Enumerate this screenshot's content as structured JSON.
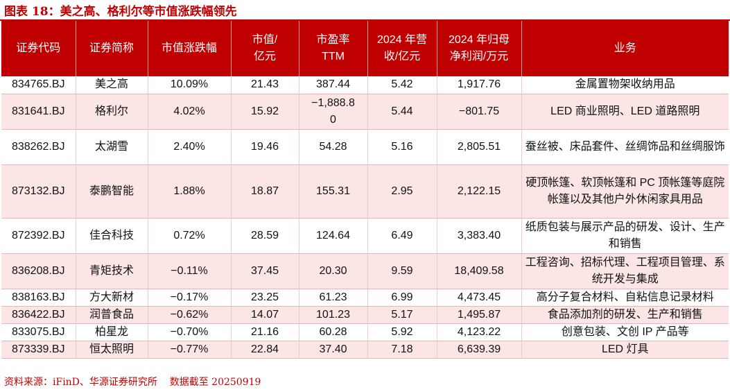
{
  "title": "图表 18：美之高、格利尔等市值涨跌幅领先",
  "headers": {
    "code": "证券代码",
    "name": "证券简称",
    "change": "市值涨跌幅",
    "mcap": "市值/亿元",
    "pe": "市盈率 TTM",
    "rev": "2024 年营收/亿元",
    "profit": "2024 年归母净利润/万元",
    "biz": "业务"
  },
  "rows": [
    {
      "code": "834765.BJ",
      "name": "美之高",
      "change": "10.09%",
      "mcap": "21.43",
      "pe": "387.44",
      "rev": "5.42",
      "profit": "1,917.76",
      "biz": "金属置物架收纳用品"
    },
    {
      "code": "831641.BJ",
      "name": "格利尔",
      "change": "4.02%",
      "mcap": "15.92",
      "pe": "−1,888.80",
      "rev": "5.44",
      "profit": "−801.75",
      "biz": "LED 商业照明、LED 道路照明"
    },
    {
      "code": "838262.BJ",
      "name": "太湖雪",
      "change": "2.40%",
      "mcap": "19.46",
      "pe": "54.28",
      "rev": "5.16",
      "profit": "2,805.51",
      "biz": "蚕丝被、床品套件、丝绸饰品和丝绸服饰"
    },
    {
      "code": "873132.BJ",
      "name": "泰鹏智能",
      "change": "1.88%",
      "mcap": "18.87",
      "pe": "155.31",
      "rev": "2.95",
      "profit": "2,122.15",
      "biz": "硬顶帐篷、软顶帐篷和 PC 顶帐篷等庭院帐篷以及其他户外休闲家具用品"
    },
    {
      "code": "872392.BJ",
      "name": "佳合科技",
      "change": "0.72%",
      "mcap": "28.59",
      "pe": "124.64",
      "rev": "6.49",
      "profit": "3,383.40",
      "biz": "纸质包装与展示产品的研发、设计、生产和销售"
    },
    {
      "code": "836208.BJ",
      "name": "青矩技术",
      "change": "−0.11%",
      "mcap": "37.45",
      "pe": "20.30",
      "rev": "9.59",
      "profit": "18,409.58",
      "biz": "工程咨询、招标代理、工程项目管理、系统开发与集成"
    },
    {
      "code": "838163.BJ",
      "name": "方大新材",
      "change": "−0.17%",
      "mcap": "23.25",
      "pe": "61.23",
      "rev": "6.99",
      "profit": "4,473.45",
      "biz": "高分子复合材料、自粘信息记录材料"
    },
    {
      "code": "836422.BJ",
      "name": "润普食品",
      "change": "−0.62%",
      "mcap": "14.07",
      "pe": "101.23",
      "rev": "5.17",
      "profit": "1,495.87",
      "biz": "食品添加剂的研发、生产和销售"
    },
    {
      "code": "833075.BJ",
      "name": "柏星龙",
      "change": "−0.70%",
      "mcap": "21.16",
      "pe": "60.28",
      "rev": "5.92",
      "profit": "4,123.22",
      "biz": "创意包装、文创 IP 产品等"
    },
    {
      "code": "873339.BJ",
      "name": "恒太照明",
      "change": "−0.77%",
      "mcap": "22.84",
      "pe": "37.40",
      "rev": "7.18",
      "profit": "6,639.39",
      "biz": "LED 灯具"
    }
  ],
  "source": "资料来源：iFinD、华源证券研究所    数据截至 20250919"
}
